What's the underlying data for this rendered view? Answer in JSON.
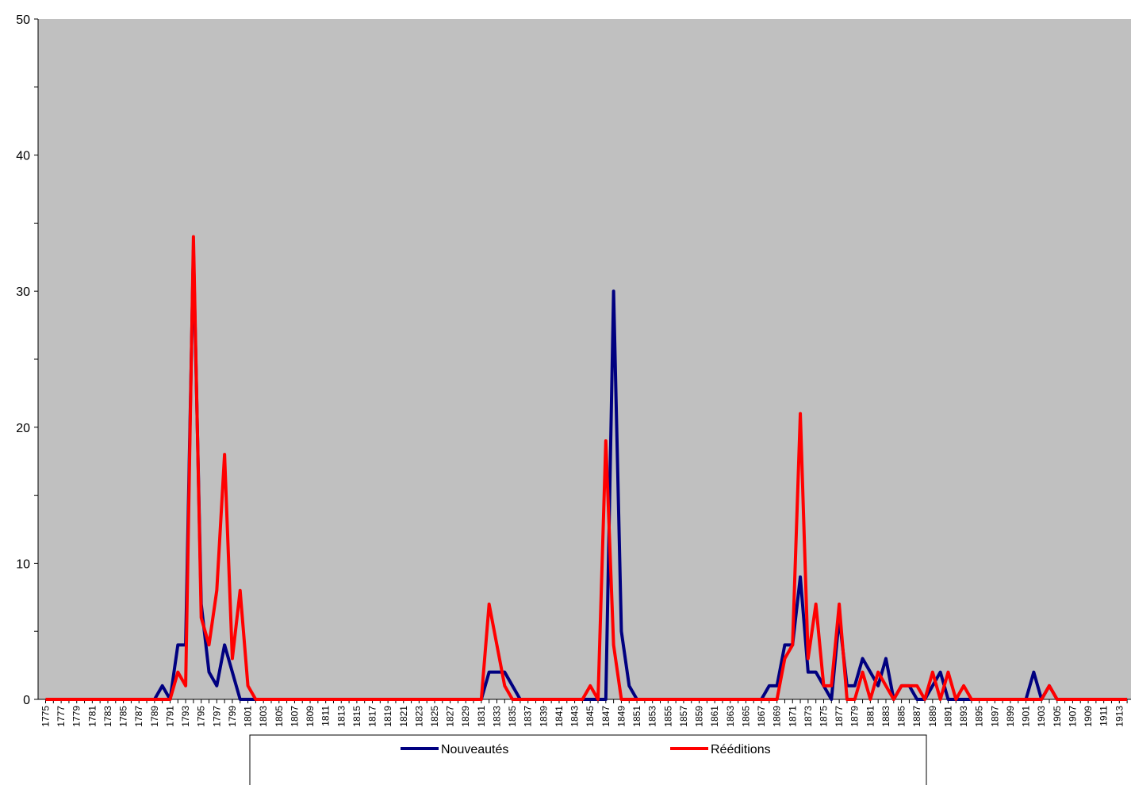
{
  "chart_data": {
    "type": "line",
    "title": "",
    "xlabel": "",
    "ylabel": "",
    "x_start": 1775,
    "x_end": 1914,
    "x_tick_step": 2,
    "ylim": [
      0,
      50
    ],
    "y_ticks": [
      0,
      10,
      20,
      30,
      40,
      50
    ],
    "grid": false,
    "plot_background": "#c0c0c0",
    "legend_position": "bottom",
    "series": [
      {
        "name": "Nouveautés",
        "color": "#000080",
        "points": [
          [
            1789,
            0
          ],
          [
            1790,
            1
          ],
          [
            1791,
            0
          ],
          [
            1792,
            4
          ],
          [
            1793,
            4
          ],
          [
            1794,
            33
          ],
          [
            1795,
            7
          ],
          [
            1796,
            2
          ],
          [
            1797,
            1
          ],
          [
            1798,
            4
          ],
          [
            1799,
            2
          ],
          [
            1800,
            0
          ],
          [
            1801,
            0
          ],
          [
            1802,
            0
          ],
          [
            1831,
            0
          ],
          [
            1832,
            2
          ],
          [
            1833,
            2
          ],
          [
            1834,
            2
          ],
          [
            1835,
            1
          ],
          [
            1836,
            0
          ],
          [
            1846,
            0
          ],
          [
            1847,
            0
          ],
          [
            1848,
            30
          ],
          [
            1849,
            5
          ],
          [
            1850,
            1
          ],
          [
            1851,
            0
          ],
          [
            1866,
            0
          ],
          [
            1867,
            0
          ],
          [
            1868,
            1
          ],
          [
            1869,
            1
          ],
          [
            1870,
            4
          ],
          [
            1871,
            4
          ],
          [
            1872,
            9
          ],
          [
            1873,
            2
          ],
          [
            1874,
            2
          ],
          [
            1875,
            1
          ],
          [
            1876,
            0
          ],
          [
            1877,
            6
          ],
          [
            1878,
            1
          ],
          [
            1879,
            1
          ],
          [
            1880,
            3
          ],
          [
            1881,
            2
          ],
          [
            1882,
            1
          ],
          [
            1883,
            3
          ],
          [
            1884,
            0
          ],
          [
            1885,
            1
          ],
          [
            1886,
            1
          ],
          [
            1887,
            0
          ],
          [
            1888,
            0
          ],
          [
            1889,
            1
          ],
          [
            1890,
            2
          ],
          [
            1891,
            0
          ],
          [
            1892,
            0
          ],
          [
            1893,
            0
          ],
          [
            1900,
            0
          ],
          [
            1901,
            0
          ],
          [
            1902,
            2
          ],
          [
            1903,
            0
          ],
          [
            1904,
            1
          ],
          [
            1905,
            0
          ]
        ]
      },
      {
        "name": "Rééditions",
        "color": "#ff0000",
        "points": [
          [
            1791,
            0
          ],
          [
            1792,
            2
          ],
          [
            1793,
            1
          ],
          [
            1794,
            34
          ],
          [
            1795,
            6
          ],
          [
            1796,
            4
          ],
          [
            1797,
            8
          ],
          [
            1798,
            18
          ],
          [
            1799,
            3
          ],
          [
            1800,
            8
          ],
          [
            1801,
            1
          ],
          [
            1802,
            0
          ],
          [
            1831,
            0
          ],
          [
            1832,
            7
          ],
          [
            1833,
            4
          ],
          [
            1834,
            1
          ],
          [
            1835,
            0
          ],
          [
            1844,
            0
          ],
          [
            1845,
            1
          ],
          [
            1846,
            0
          ],
          [
            1847,
            19
          ],
          [
            1848,
            4
          ],
          [
            1849,
            0
          ],
          [
            1869,
            0
          ],
          [
            1870,
            3
          ],
          [
            1871,
            4
          ],
          [
            1872,
            21
          ],
          [
            1873,
            3
          ],
          [
            1874,
            7
          ],
          [
            1875,
            1
          ],
          [
            1876,
            1
          ],
          [
            1877,
            7
          ],
          [
            1878,
            0
          ],
          [
            1879,
            0
          ],
          [
            1880,
            2
          ],
          [
            1881,
            0
          ],
          [
            1882,
            2
          ],
          [
            1883,
            1
          ],
          [
            1884,
            0
          ],
          [
            1885,
            1
          ],
          [
            1886,
            1
          ],
          [
            1887,
            1
          ],
          [
            1888,
            0
          ],
          [
            1889,
            2
          ],
          [
            1890,
            0
          ],
          [
            1891,
            2
          ],
          [
            1892,
            0
          ],
          [
            1893,
            1
          ],
          [
            1894,
            0
          ],
          [
            1902,
            0
          ],
          [
            1903,
            0
          ],
          [
            1904,
            1
          ],
          [
            1905,
            0
          ]
        ]
      }
    ]
  }
}
